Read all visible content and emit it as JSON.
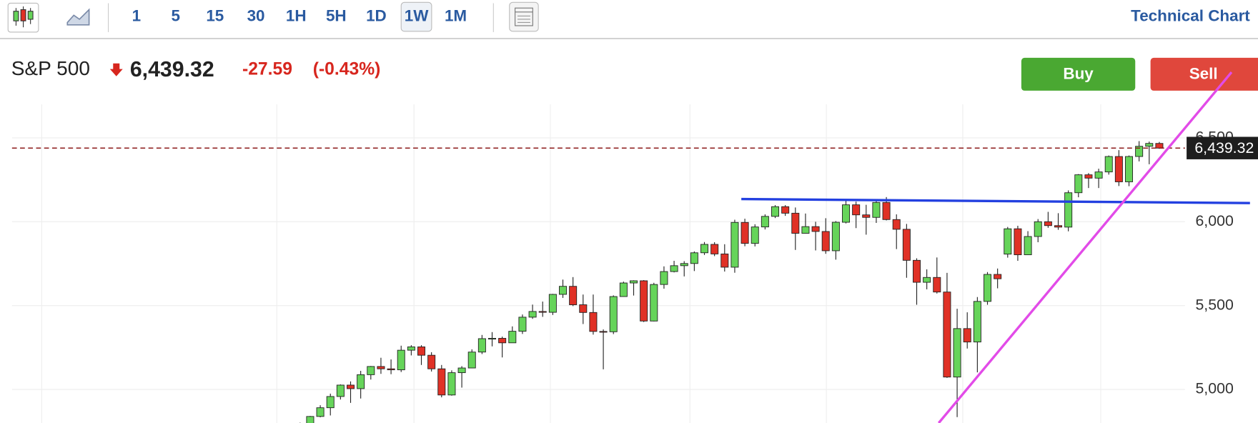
{
  "toolbar": {
    "intervals": [
      "1",
      "5",
      "15",
      "30",
      "1H",
      "5H",
      "1D",
      "1W",
      "1M"
    ],
    "title": "Technical Chart"
  },
  "quote": {
    "name": "S&P 500",
    "price": "6,439.32",
    "change": "-27.59",
    "change_pct": "(-0.43%)"
  },
  "actions": {
    "buy": "Buy",
    "sell": "Sell"
  },
  "chart_data": {
    "type": "candlestick",
    "up_color": "#66d45a",
    "down_color": "#e03126",
    "grid": true,
    "ylim": [
      4800,
      6700
    ],
    "yticks": [
      {
        "value": 5000,
        "label": "5,000"
      },
      {
        "value": 5500,
        "label": "5,500"
      },
      {
        "value": 6000,
        "label": "6,000"
      },
      {
        "value": 6500,
        "label": "6,500"
      }
    ],
    "price_line": {
      "value": 6439.32,
      "label": "6,439.32",
      "color": "#8b1a1a"
    },
    "open": [
      4697,
      4783,
      4839,
      4891,
      4958,
      5026,
      5005,
      5088,
      5137,
      5123,
      5117,
      5234,
      5254,
      5204,
      5123,
      4967,
      5100,
      5128,
      5223,
      5303,
      5305,
      5278,
      5347,
      5431,
      5465,
      5460,
      5567,
      5615,
      5505,
      5459,
      5346,
      5344,
      5554,
      5635,
      5648,
      5408,
      5626,
      5703,
      5738,
      5751,
      5815,
      5865,
      5808,
      5729,
      5996,
      5871,
      5969,
      6032,
      6090,
      6051,
      5931,
      5971,
      5942,
      5827,
      5997,
      6101,
      6041,
      6026,
      6115,
      6013,
      5955,
      5770,
      5639,
      5668,
      5581,
      5074,
      5363,
      5283,
      5525,
      5686,
      5807,
      5958,
      5803,
      5912,
      6000,
      5977,
      5968,
      6173,
      6280,
      6260,
      6297,
      6389,
      6238,
      6389,
      6450,
      6467
    ],
    "high": [
      4802,
      4842,
      4906,
      4975,
      5030,
      5048,
      5111,
      5140,
      5189,
      5179,
      5261,
      5264,
      5264,
      5222,
      5146,
      5114,
      5139,
      5239,
      5325,
      5342,
      5315,
      5376,
      5447,
      5506,
      5524,
      5570,
      5655,
      5670,
      5566,
      5566,
      5358,
      5561,
      5643,
      5651,
      5652,
      5636,
      5734,
      5767,
      5765,
      5823,
      5879,
      5878,
      5866,
      6012,
      6018,
      5985,
      6044,
      6099,
      6099,
      6085,
      6049,
      6000,
      6021,
      6004,
      6129,
      6120,
      6101,
      6128,
      6147,
      6044,
      5987,
      5782,
      5716,
      5787,
      5695,
      5481,
      5460,
      5551,
      5700,
      5721,
      5969,
      5976,
      5944,
      6016,
      6059,
      6051,
      6187,
      6284,
      6290,
      6316,
      6395,
      6427,
      6395,
      6481,
      6478,
      6476
    ],
    "low": [
      4682,
      4740,
      4834,
      4845,
      4940,
      4920,
      4946,
      5059,
      5093,
      5091,
      5104,
      5203,
      5146,
      5107,
      4953,
      4963,
      5011,
      5127,
      5211,
      5257,
      5191,
      5278,
      5331,
      5421,
      5433,
      5444,
      5546,
      5497,
      5390,
      5327,
      5120,
      5330,
      5553,
      5560,
      5402,
      5406,
      5601,
      5698,
      5674,
      5706,
      5802,
      5795,
      5703,
      5696,
      5854,
      5853,
      5954,
      6022,
      6035,
      5832,
      5930,
      5829,
      5809,
      5774,
      5990,
      5962,
      5923,
      5993,
      6008,
      5837,
      5666,
      5505,
      5597,
      5572,
      5069,
      4835,
      5244,
      5102,
      5505,
      5603,
      5786,
      5767,
      5803,
      5878,
      5964,
      5952,
      5943,
      6146,
      6201,
      6201,
      6281,
      6213,
      6212,
      6360,
      6343,
      6435
    ],
    "close": [
      4783,
      4839,
      4891,
      4958,
      5026,
      5005,
      5088,
      5137,
      5123,
      5117,
      5234,
      5254,
      5204,
      5123,
      4967,
      5100,
      5128,
      5223,
      5303,
      5305,
      5278,
      5347,
      5431,
      5465,
      5460,
      5567,
      5615,
      5505,
      5459,
      5346,
      5344,
      5554,
      5635,
      5648,
      5408,
      5626,
      5703,
      5738,
      5751,
      5815,
      5865,
      5808,
      5729,
      5996,
      5871,
      5969,
      6032,
      6090,
      6051,
      5931,
      5971,
      5942,
      5827,
      5997,
      6101,
      6041,
      6026,
      6115,
      6013,
      5955,
      5770,
      5639,
      5668,
      5581,
      5074,
      5363,
      5283,
      5525,
      5686,
      5660,
      5958,
      5803,
      5912,
      6000,
      5977,
      5968,
      6173,
      6280,
      6260,
      6297,
      6389,
      6238,
      6389,
      6450,
      6467,
      6439
    ]
  }
}
